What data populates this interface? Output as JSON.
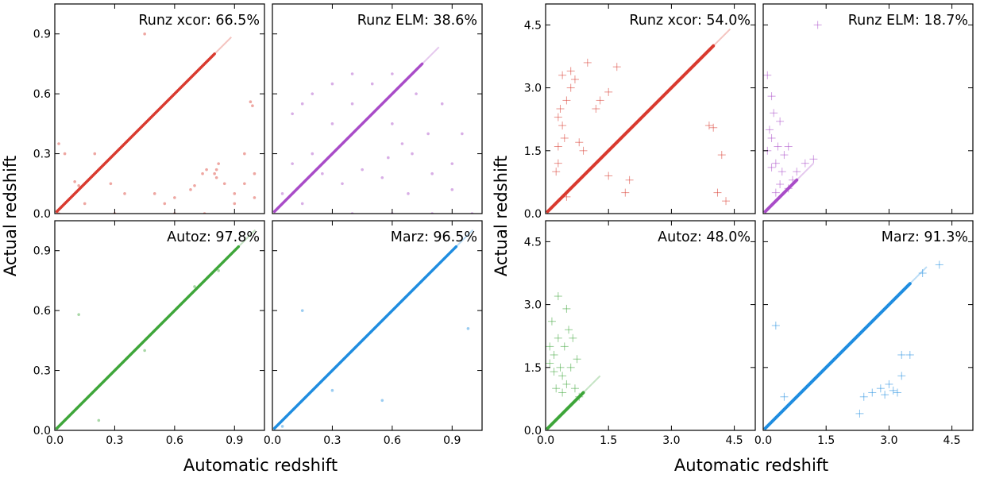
{
  "colors": {
    "runz_xcor": "#d93a2f",
    "runz_elm": "#a94cc8",
    "autoz": "#3ea63a",
    "marz": "#1f8de0"
  },
  "chart_data": [
    {
      "type": "scatter",
      "xlabel": "Automatic redshift",
      "ylabel": "Actual redshift",
      "xlim": [
        0.0,
        1.05
      ],
      "ylim": [
        0.0,
        1.05
      ],
      "xticks": [
        "0.0",
        "0.3",
        "0.6",
        "0.9"
      ],
      "yticks": [
        "0.0",
        "0.3",
        "0.6",
        "0.9"
      ],
      "marker": "dot",
      "grid": false,
      "panels": [
        {
          "name": "Runz xcor",
          "label": "Runz xcor: 66.5%",
          "success_rate": 66.5,
          "color_key": "runz_xcor",
          "diagonal_max": 0.8,
          "outliers": [
            [
              0.8,
              0.2
            ],
            [
              0.81,
              0.22
            ],
            [
              0.82,
              0.25
            ],
            [
              0.81,
              0.18
            ],
            [
              0.9,
              0.1
            ],
            [
              0.95,
              0.15
            ],
            [
              1.0,
              0.08
            ],
            [
              0.98,
              0.56
            ],
            [
              0.99,
              0.54
            ],
            [
              0.28,
              0.15
            ],
            [
              0.35,
              0.1
            ],
            [
              0.12,
              0.14
            ],
            [
              0.1,
              0.16
            ],
            [
              0.68,
              0.12
            ],
            [
              0.7,
              0.14
            ],
            [
              0.74,
              0.2
            ],
            [
              0.76,
              0.22
            ],
            [
              0.5,
              0.1
            ],
            [
              0.55,
              0.05
            ],
            [
              0.6,
              0.08
            ],
            [
              0.2,
              0.3
            ],
            [
              0.15,
              0.05
            ],
            [
              0.05,
              0.3
            ],
            [
              0.02,
              0.35
            ],
            [
              0.9,
              0.05
            ],
            [
              0.95,
              0.3
            ],
            [
              1.0,
              0.2
            ],
            [
              0.85,
              0.15
            ],
            [
              0.45,
              0.9
            ],
            [
              0.02,
              0.0
            ],
            [
              0.3,
              0.0
            ],
            [
              0.6,
              0.0
            ],
            [
              0.75,
              0.0
            ]
          ]
        },
        {
          "name": "Runz ELM",
          "label": "Runz ELM: 38.6%",
          "success_rate": 38.6,
          "color_key": "runz_elm",
          "diagonal_max": 0.75,
          "outliers": [
            [
              0.1,
              0.5
            ],
            [
              0.15,
              0.55
            ],
            [
              0.2,
              0.6
            ],
            [
              0.3,
              0.65
            ],
            [
              0.4,
              0.55
            ],
            [
              0.5,
              0.5
            ],
            [
              0.6,
              0.45
            ],
            [
              0.7,
              0.3
            ],
            [
              0.8,
              0.2
            ],
            [
              0.9,
              0.25
            ],
            [
              0.95,
              0.4
            ],
            [
              0.25,
              0.2
            ],
            [
              0.35,
              0.15
            ],
            [
              0.45,
              0.22
            ],
            [
              0.55,
              0.18
            ],
            [
              0.65,
              0.35
            ],
            [
              0.72,
              0.6
            ],
            [
              0.6,
              0.7
            ],
            [
              0.5,
              0.65
            ],
            [
              0.4,
              0.7
            ],
            [
              0.3,
              0.45
            ],
            [
              0.2,
              0.3
            ],
            [
              0.1,
              0.25
            ],
            [
              0.05,
              0.1
            ],
            [
              0.15,
              0.05
            ],
            [
              0.4,
              0.0
            ],
            [
              0.6,
              0.0
            ],
            [
              0.8,
              0.0
            ],
            [
              1.0,
              0.0
            ],
            [
              0.85,
              0.55
            ],
            [
              0.9,
              0.12
            ],
            [
              0.78,
              0.4
            ],
            [
              0.68,
              0.1
            ],
            [
              0.58,
              0.28
            ]
          ]
        },
        {
          "name": "Autoz",
          "label": "Autoz: 97.8%",
          "success_rate": 97.8,
          "color_key": "autoz",
          "diagonal_max": 0.92,
          "outliers": [
            [
              0.12,
              0.58
            ],
            [
              0.22,
              0.05
            ],
            [
              0.45,
              0.4
            ],
            [
              0.7,
              0.72
            ],
            [
              0.82,
              0.8
            ]
          ]
        },
        {
          "name": "Marz",
          "label": "Marz: 96.5%",
          "success_rate": 96.5,
          "color_key": "marz",
          "diagonal_max": 0.92,
          "outliers": [
            [
              0.98,
              0.51
            ],
            [
              0.3,
              0.2
            ],
            [
              0.55,
              0.15
            ],
            [
              0.15,
              0.6
            ],
            [
              0.05,
              0.02
            ]
          ]
        }
      ]
    },
    {
      "type": "scatter",
      "xlabel": "Automatic redshift",
      "ylabel": "Actual redshift",
      "xlim": [
        0.0,
        5.0
      ],
      "ylim": [
        0.0,
        5.0
      ],
      "xticks": [
        "0.0",
        "1.5",
        "3.0",
        "4.5"
      ],
      "yticks": [
        "0.0",
        "1.5",
        "3.0",
        "4.5"
      ],
      "marker": "plus",
      "grid": false,
      "panels": [
        {
          "name": "Runz xcor",
          "label": "Runz xcor: 54.0%",
          "success_rate": 54.0,
          "color_key": "runz_xcor",
          "diagonal_max": 4.0,
          "outliers": [
            [
              0.3,
              2.3
            ],
            [
              0.35,
              2.5
            ],
            [
              0.4,
              2.1
            ],
            [
              0.45,
              1.8
            ],
            [
              0.3,
              1.6
            ],
            [
              0.5,
              2.7
            ],
            [
              0.6,
              3.0
            ],
            [
              0.7,
              3.2
            ],
            [
              0.8,
              1.7
            ],
            [
              0.9,
              1.5
            ],
            [
              1.2,
              2.5
            ],
            [
              1.3,
              2.7
            ],
            [
              1.5,
              2.9
            ],
            [
              1.0,
              3.6
            ],
            [
              0.4,
              3.3
            ],
            [
              0.5,
              0.4
            ],
            [
              0.3,
              1.2
            ],
            [
              0.25,
              1.0
            ],
            [
              1.9,
              0.5
            ],
            [
              2.0,
              0.8
            ],
            [
              3.9,
              2.1
            ],
            [
              4.0,
              2.05
            ],
            [
              4.2,
              1.4
            ],
            [
              4.1,
              0.5
            ],
            [
              4.3,
              0.3
            ],
            [
              1.7,
              3.5
            ],
            [
              1.5,
              0.9
            ],
            [
              0.6,
              3.4
            ]
          ]
        },
        {
          "name": "Runz ELM",
          "label": "Runz ELM: 18.7%",
          "success_rate": 18.7,
          "color_key": "runz_elm",
          "diagonal_max": 0.8,
          "outliers": [
            [
              0.1,
              1.5
            ],
            [
              0.15,
              2.0
            ],
            [
              0.2,
              1.8
            ],
            [
              0.25,
              2.4
            ],
            [
              0.3,
              1.2
            ],
            [
              0.35,
              1.6
            ],
            [
              0.2,
              2.8
            ],
            [
              0.1,
              3.3
            ],
            [
              0.4,
              2.2
            ],
            [
              0.5,
              1.4
            ],
            [
              0.6,
              1.6
            ],
            [
              0.8,
              1.0
            ],
            [
              1.0,
              1.2
            ],
            [
              1.2,
              1.3
            ],
            [
              0.3,
              0.5
            ],
            [
              0.4,
              0.7
            ],
            [
              0.6,
              0.6
            ],
            [
              0.7,
              0.8
            ],
            [
              0.45,
              1.0
            ],
            [
              0.2,
              1.1
            ],
            [
              1.3,
              4.5
            ]
          ]
        },
        {
          "name": "Autoz",
          "label": "Autoz: 48.0%",
          "success_rate": 48.0,
          "color_key": "autoz",
          "diagonal_max": 0.9,
          "outliers": [
            [
              0.1,
              2.0
            ],
            [
              0.2,
              1.8
            ],
            [
              0.3,
              2.2
            ],
            [
              0.15,
              2.6
            ],
            [
              0.35,
              1.5
            ],
            [
              0.4,
              1.3
            ],
            [
              0.45,
              2.0
            ],
            [
              0.5,
              1.1
            ],
            [
              0.6,
              1.5
            ],
            [
              0.7,
              1.0
            ],
            [
              0.8,
              0.8
            ],
            [
              0.25,
              1.0
            ],
            [
              0.55,
              2.4
            ],
            [
              0.65,
              2.2
            ],
            [
              0.75,
              1.7
            ],
            [
              0.3,
              3.2
            ],
            [
              0.5,
              2.9
            ],
            [
              0.2,
              1.4
            ],
            [
              0.1,
              1.6
            ],
            [
              0.4,
              0.9
            ]
          ]
        },
        {
          "name": "Marz",
          "label": "Marz: 91.3%",
          "success_rate": 91.3,
          "color_key": "marz",
          "diagonal_max": 3.5,
          "outliers": [
            [
              2.6,
              0.9
            ],
            [
              2.8,
              1.0
            ],
            [
              3.0,
              1.1
            ],
            [
              3.2,
              0.9
            ],
            [
              3.3,
              1.3
            ],
            [
              3.5,
              1.8
            ],
            [
              2.3,
              0.4
            ],
            [
              0.5,
              0.8
            ],
            [
              0.3,
              2.5
            ],
            [
              3.8,
              3.75
            ],
            [
              4.2,
              3.95
            ],
            [
              3.3,
              1.8
            ],
            [
              3.1,
              0.95
            ],
            [
              2.9,
              0.85
            ],
            [
              2.4,
              0.8
            ]
          ]
        }
      ]
    }
  ]
}
